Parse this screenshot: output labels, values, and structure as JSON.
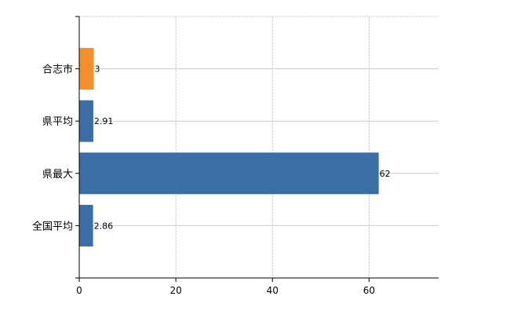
{
  "chart_data": {
    "type": "bar",
    "orientation": "horizontal",
    "categories": [
      "合志市",
      "県平均",
      "県最大",
      "全国平均"
    ],
    "values": [
      3,
      2.91,
      62,
      2.86
    ],
    "data_labels": [
      "3",
      "2.91",
      "62",
      "2.86"
    ],
    "colors": [
      "#f28e2b",
      "#3b6ea5",
      "#3b6ea5",
      "#3b6ea5"
    ],
    "xlim": [
      0,
      74.4
    ],
    "xticks": [
      0,
      20,
      40,
      60
    ],
    "xtick_labels": [
      "0",
      "20",
      "40",
      "60"
    ],
    "grid": true
  }
}
